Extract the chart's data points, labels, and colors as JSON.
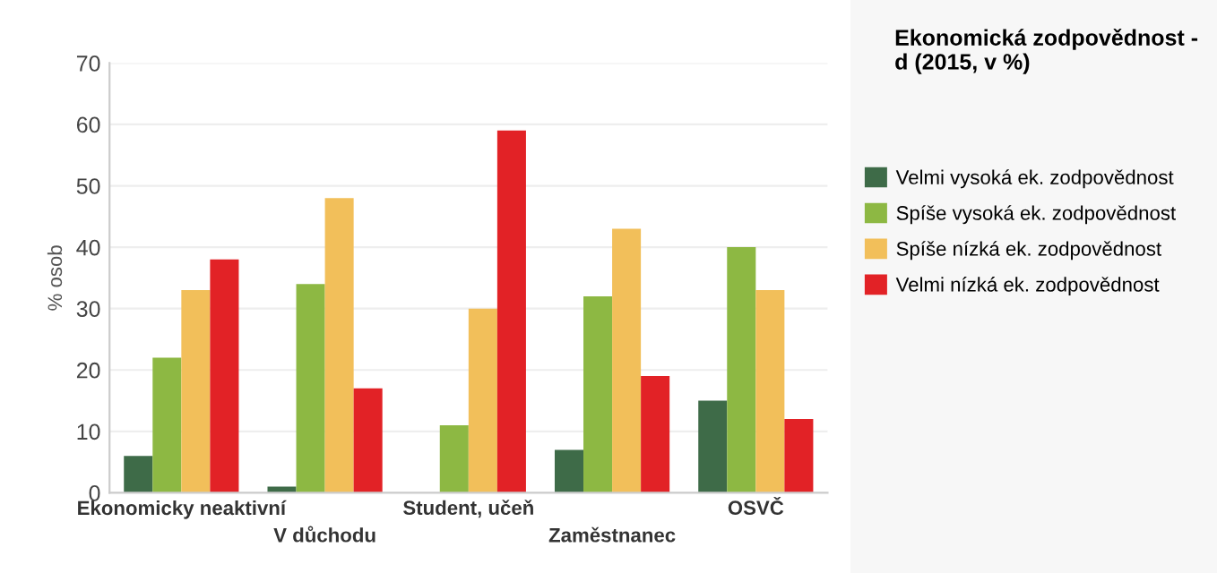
{
  "chart_data": {
    "type": "bar",
    "legend_title": "Ekonomická zodpovědnost - d (2015, v %)",
    "ylabel": "% osob",
    "categories": [
      "Ekonomicky neaktivní",
      "V důchodu",
      "Student, učeň",
      "Zaměstnanec",
      "OSVČ"
    ],
    "series": [
      {
        "name": "Velmi vysoká ek. zodpovědnost",
        "color": "#3e6b48",
        "values": [
          6,
          1,
          0,
          7,
          15
        ]
      },
      {
        "name": "Spíše vysoká ek. zodpovědnost",
        "color": "#8db843",
        "values": [
          22,
          34,
          11,
          32,
          40
        ]
      },
      {
        "name": "Spíše nízká ek. zodpovědnost",
        "color": "#f2bf5a",
        "values": [
          33,
          48,
          30,
          43,
          33
        ]
      },
      {
        "name": "Velmi nízká ek. zodpovědnost",
        "color": "#e22226",
        "values": [
          38,
          17,
          59,
          19,
          12
        ]
      }
    ],
    "ylim": [
      0,
      70
    ],
    "yticks": [
      0,
      10,
      20,
      30,
      40,
      50,
      60,
      70
    ],
    "grid": "y",
    "legend": "right"
  }
}
